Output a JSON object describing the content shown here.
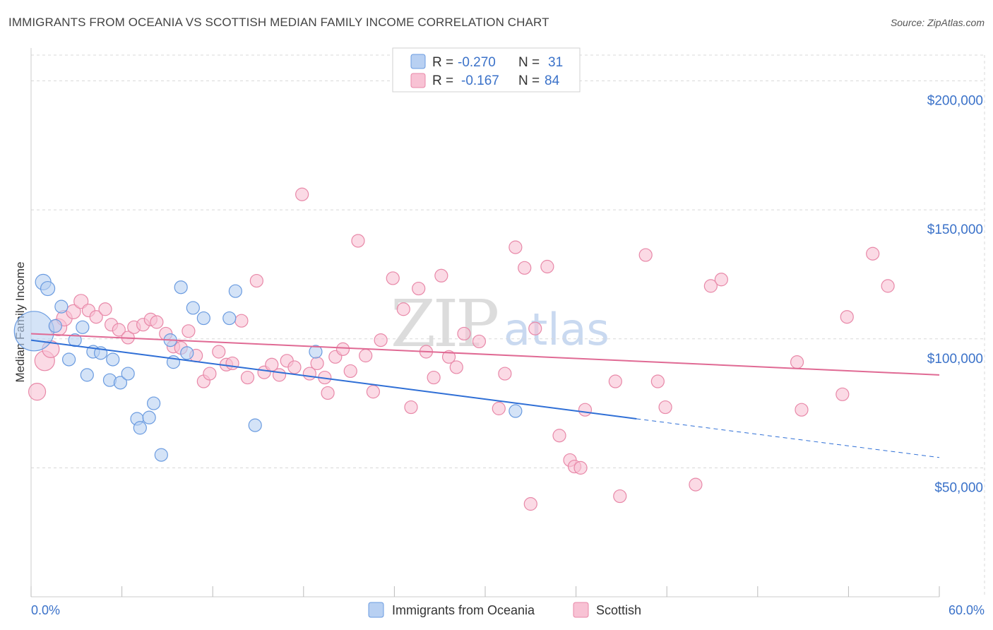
{
  "title": "IMMIGRANTS FROM OCEANIA VS SCOTTISH MEDIAN FAMILY INCOME CORRELATION CHART",
  "source": "Source: ZipAtlas.com",
  "watermark": {
    "zip": "ZIP",
    "atlas": "atlas"
  },
  "colors": {
    "blue_fill": "#b8d0f2",
    "blue_stroke": "#6a9be0",
    "blue_line": "#2f6fd6",
    "pink_fill": "#f8c2d4",
    "pink_stroke": "#e888a8",
    "pink_line": "#e06a94",
    "grid": "#d8d8d8",
    "axis_text": "#3b72c9"
  },
  "legend": {
    "rows": [
      {
        "r_label": "R =",
        "r_value": "-0.270",
        "n_label": "N =",
        "n_value": "31"
      },
      {
        "r_label": "R =",
        "r_value": "-0.167",
        "n_label": "N =",
        "n_value": "84"
      }
    ]
  },
  "chart_data": {
    "type": "scatter",
    "title": "IMMIGRANTS FROM OCEANIA VS SCOTTISH MEDIAN FAMILY INCOME CORRELATION CHART",
    "xlabel": "",
    "ylabel": "Median Family Income",
    "xlim": [
      0,
      60
    ],
    "ylim": [
      0,
      210000
    ],
    "x_tick_labels": [
      "0.0%",
      "60.0%"
    ],
    "y_ticks": [
      50000,
      100000,
      150000,
      200000
    ],
    "y_tick_labels": [
      "$50,000",
      "$100,000",
      "$150,000",
      "$200,000"
    ],
    "series": [
      {
        "name": "Immigrants from Oceania",
        "color": "blue",
        "R": -0.27,
        "N": 31,
        "trend": {
          "x0": 0,
          "y0": 99500,
          "x1": 40,
          "y1": 69000,
          "dash_x1": 60,
          "dash_y1": 54000
        },
        "points": [
          [
            0.2,
            103000,
            28
          ],
          [
            0.8,
            122000,
            11
          ],
          [
            1.1,
            119500,
            10
          ],
          [
            1.6,
            105000,
            9
          ],
          [
            2.0,
            112500,
            9
          ],
          [
            2.5,
            92000,
            9
          ],
          [
            2.9,
            99500,
            9
          ],
          [
            3.4,
            104500,
            9
          ],
          [
            3.7,
            86000,
            9
          ],
          [
            4.1,
            95000,
            9
          ],
          [
            4.6,
            94500,
            9
          ],
          [
            5.2,
            84000,
            9
          ],
          [
            5.4,
            92000,
            9
          ],
          [
            5.9,
            83000,
            9
          ],
          [
            6.4,
            86500,
            9
          ],
          [
            7.0,
            69000,
            9
          ],
          [
            7.2,
            65500,
            9
          ],
          [
            7.8,
            69500,
            9
          ],
          [
            8.1,
            75000,
            9
          ],
          [
            8.6,
            55000,
            9
          ],
          [
            9.2,
            99500,
            9
          ],
          [
            9.4,
            91000,
            9
          ],
          [
            9.9,
            120000,
            9
          ],
          [
            10.3,
            94500,
            9
          ],
          [
            10.7,
            112000,
            9
          ],
          [
            11.4,
            108000,
            9
          ],
          [
            13.1,
            108000,
            9
          ],
          [
            13.5,
            118500,
            9
          ],
          [
            14.8,
            66500,
            9
          ],
          [
            18.8,
            95000,
            9
          ],
          [
            32.0,
            72000,
            9
          ]
        ]
      },
      {
        "name": "Scottish",
        "color": "pink",
        "R": -0.167,
        "N": 84,
        "trend": {
          "x0": 0,
          "y0": 102000,
          "x1": 60,
          "y1": 86000
        },
        "points": [
          [
            0.4,
            79500,
            12
          ],
          [
            0.9,
            91500,
            14
          ],
          [
            1.3,
            96000,
            12
          ],
          [
            1.8,
            104500,
            12
          ],
          [
            2.2,
            108000,
            11
          ],
          [
            2.8,
            110500,
            10
          ],
          [
            3.3,
            114500,
            10
          ],
          [
            3.8,
            111000,
            9
          ],
          [
            4.3,
            108500,
            9
          ],
          [
            4.9,
            111500,
            9
          ],
          [
            5.3,
            105500,
            9
          ],
          [
            5.8,
            103500,
            9
          ],
          [
            6.4,
            100500,
            9
          ],
          [
            6.8,
            104500,
            9
          ],
          [
            7.4,
            105500,
            9
          ],
          [
            7.9,
            107500,
            9
          ],
          [
            8.3,
            106500,
            9
          ],
          [
            8.9,
            102000,
            9
          ],
          [
            9.4,
            97000,
            9
          ],
          [
            9.9,
            96500,
            9
          ],
          [
            10.4,
            103000,
            9
          ],
          [
            10.9,
            93500,
            9
          ],
          [
            11.4,
            83500,
            9
          ],
          [
            11.8,
            86500,
            9
          ],
          [
            12.4,
            95000,
            9
          ],
          [
            12.9,
            90000,
            9
          ],
          [
            13.3,
            90500,
            9
          ],
          [
            13.9,
            107000,
            9
          ],
          [
            14.3,
            85000,
            9
          ],
          [
            14.9,
            122500,
            9
          ],
          [
            15.4,
            87000,
            9
          ],
          [
            15.9,
            90000,
            9
          ],
          [
            16.4,
            86000,
            9
          ],
          [
            16.9,
            91500,
            9
          ],
          [
            17.4,
            89000,
            9
          ],
          [
            17.9,
            156000,
            9
          ],
          [
            18.4,
            86500,
            9
          ],
          [
            18.9,
            90500,
            9
          ],
          [
            19.4,
            85000,
            9
          ],
          [
            19.6,
            79000,
            9
          ],
          [
            20.1,
            93000,
            9
          ],
          [
            20.6,
            96000,
            9
          ],
          [
            21.1,
            87500,
            9
          ],
          [
            21.6,
            138000,
            9
          ],
          [
            22.1,
            93500,
            9
          ],
          [
            22.6,
            79500,
            9
          ],
          [
            23.1,
            99500,
            9
          ],
          [
            23.9,
            123500,
            9
          ],
          [
            24.6,
            111500,
            9
          ],
          [
            25.1,
            73500,
            9
          ],
          [
            25.6,
            119500,
            9
          ],
          [
            26.1,
            95000,
            9
          ],
          [
            26.6,
            85000,
            9
          ],
          [
            27.1,
            124500,
            9
          ],
          [
            27.6,
            93000,
            9
          ],
          [
            28.1,
            89000,
            9
          ],
          [
            28.6,
            102000,
            9
          ],
          [
            29.6,
            99000,
            9
          ],
          [
            30.9,
            73000,
            9
          ],
          [
            31.3,
            86500,
            9
          ],
          [
            32.0,
            135500,
            9
          ],
          [
            32.6,
            127500,
            9
          ],
          [
            33.3,
            104000,
            9
          ],
          [
            34.1,
            128000,
            9
          ],
          [
            34.9,
            62500,
            9
          ],
          [
            35.6,
            53000,
            9
          ],
          [
            35.9,
            50500,
            9
          ],
          [
            36.3,
            50000,
            9
          ],
          [
            36.6,
            72500,
            9
          ],
          [
            33.0,
            36000,
            9
          ],
          [
            38.6,
            83500,
            9
          ],
          [
            38.9,
            39000,
            9
          ],
          [
            40.6,
            132500,
            9
          ],
          [
            41.4,
            83500,
            9
          ],
          [
            41.9,
            73500,
            9
          ],
          [
            43.9,
            43500,
            9
          ],
          [
            44.9,
            120500,
            9
          ],
          [
            45.6,
            123000,
            9
          ],
          [
            50.6,
            91000,
            9
          ],
          [
            50.9,
            72500,
            9
          ],
          [
            53.6,
            78500,
            9
          ],
          [
            53.9,
            108500,
            9
          ],
          [
            55.6,
            133000,
            9
          ],
          [
            56.6,
            120500,
            9
          ]
        ]
      }
    ]
  }
}
